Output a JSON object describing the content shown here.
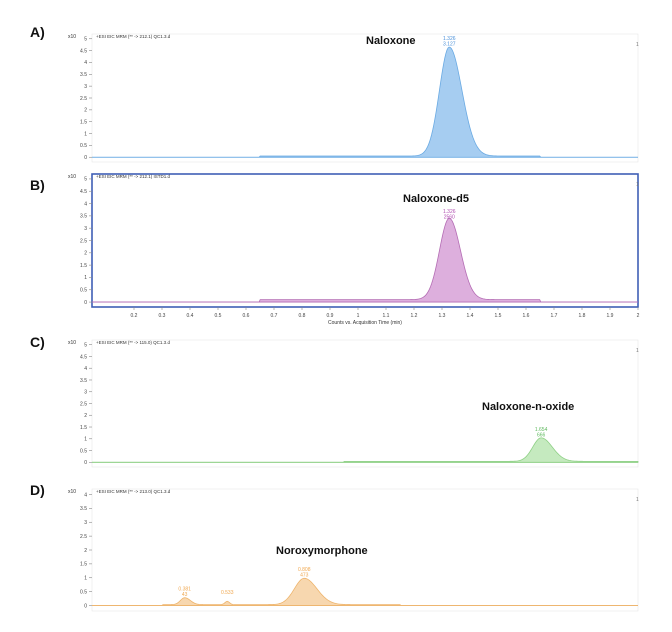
{
  "chart_data": [
    {
      "type": "area",
      "panel_label": "A)",
      "title": "Naloxone",
      "header": "+ESI EIC MRM (** -> 212.1) QC1.3.d",
      "y_multiplier": "x10",
      "xlim": [
        0.05,
        2.0
      ],
      "ylim": [
        -0.2,
        5.2
      ],
      "yticks": [
        0,
        0.5,
        1,
        1.5,
        2,
        2.5,
        3,
        3.5,
        4,
        4.5,
        5
      ],
      "corner_label": "1",
      "color": "#9cc8ef",
      "stroke": "#6aaae3",
      "peaks": [
        {
          "x": 1.326,
          "height": 4.6,
          "width_left": 0.035,
          "width_right": 0.045
        }
      ],
      "baseline": {
        "start": 0.65,
        "end": 1.65,
        "level": 0.05
      },
      "annotations": [
        {
          "x": 1.326,
          "lines": [
            "1.326",
            "3.127"
          ],
          "color": "#4a90d9"
        }
      ]
    },
    {
      "type": "area",
      "panel_label": "B)",
      "title": "Naloxone-d5",
      "header": "+ESI EIC MRM (** -> 212.1) ISTD1.d",
      "y_multiplier": "x10",
      "xlim": [
        0.05,
        2.0
      ],
      "ylim": [
        -0.2,
        5.2
      ],
      "yticks": [
        0,
        0.5,
        1,
        1.5,
        2,
        2.5,
        3,
        3.5,
        4,
        4.5,
        5
      ],
      "xticks": [
        0.2,
        0.3,
        0.4,
        0.5,
        0.6,
        0.7,
        0.8,
        0.9,
        1,
        1.1,
        1.2,
        1.3,
        1.4,
        1.5,
        1.6,
        1.7,
        1.8,
        1.9,
        2
      ],
      "xlabel": "Counts vs. Acquisition Time (min)",
      "corner_label": "1",
      "color": "#d9a6d9",
      "stroke": "#b46cb4",
      "bordered": true,
      "peaks": [
        {
          "x": 1.326,
          "height": 3.3,
          "width_left": 0.035,
          "width_right": 0.04
        }
      ],
      "baseline": {
        "start": 0.65,
        "end": 1.65,
        "level": 0.1
      },
      "annotations": [
        {
          "x": 1.326,
          "lines": [
            "1.326",
            "2560"
          ],
          "color": "#b04cb0"
        }
      ]
    },
    {
      "type": "area",
      "panel_label": "C)",
      "title": "Naloxone-n-oxide",
      "header": "+ESI EIC MRM (** -> 115.0) QC1.3.d",
      "y_multiplier": "x10",
      "xlim": [
        0.05,
        2.0
      ],
      "ylim": [
        -0.2,
        5.2
      ],
      "yticks": [
        0,
        0.5,
        1,
        1.5,
        2,
        2.5,
        3,
        3.5,
        4,
        4.5,
        5
      ],
      "corner_label": "1",
      "color": "#bfe8b8",
      "stroke": "#8fd086",
      "peaks": [
        {
          "x": 1.654,
          "height": 1.0,
          "width_left": 0.03,
          "width_right": 0.04
        }
      ],
      "baseline": {
        "start": 0.95,
        "end": 2.0,
        "level": 0.04
      },
      "annotations": [
        {
          "x": 1.654,
          "lines": [
            "1.654",
            "666"
          ],
          "color": "#5cb85c"
        }
      ]
    },
    {
      "type": "area",
      "panel_label": "D)",
      "title": "Noroxymorphone",
      "header": "+ESI EIC MRM (** -> 213.0) QC1.3.d",
      "y_multiplier": "x10",
      "xlim": [
        0.05,
        2.0
      ],
      "ylim": [
        -0.2,
        4.2
      ],
      "yticks": [
        0,
        0.5,
        1,
        1.5,
        2,
        2.5,
        3,
        3.5,
        4
      ],
      "corner_label": "1",
      "color": "#f6d3a6",
      "stroke": "#eeb46c",
      "peaks": [
        {
          "x": 0.381,
          "height": 0.25,
          "width_left": 0.015,
          "width_right": 0.02
        },
        {
          "x": 0.533,
          "height": 0.12,
          "width_left": 0.008,
          "width_right": 0.008
        },
        {
          "x": 0.808,
          "height": 0.95,
          "width_left": 0.035,
          "width_right": 0.045
        }
      ],
      "baseline": {
        "start": 0.3,
        "end": 1.15,
        "level": 0.03
      },
      "annotations": [
        {
          "x": 0.381,
          "lines": [
            "0.381",
            "43"
          ],
          "color": "#f0a850"
        },
        {
          "x": 0.533,
          "lines": [
            "0.533"
          ],
          "color": "#f0a850"
        },
        {
          "x": 0.808,
          "lines": [
            "0.808",
            "473"
          ],
          "color": "#f0a850"
        }
      ]
    }
  ]
}
